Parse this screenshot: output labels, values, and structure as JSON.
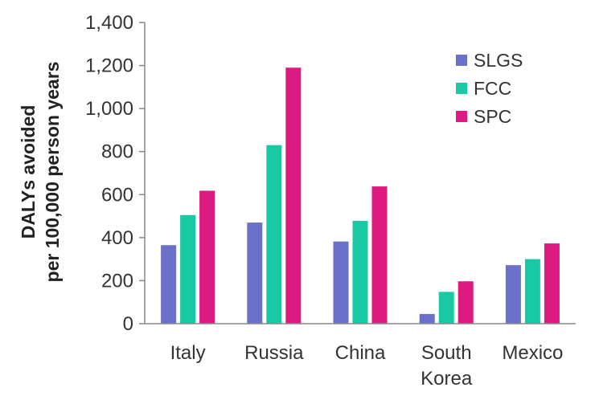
{
  "chart_data": {
    "type": "bar",
    "title": "",
    "xlabel": "",
    "ylabel_lines": [
      "DALYs avoided",
      "per 100,000 person years"
    ],
    "categories": [
      [
        "Italy"
      ],
      [
        "Russia"
      ],
      [
        "China"
      ],
      [
        "South",
        "Korea"
      ],
      [
        "Mexico"
      ]
    ],
    "ylim": [
      0,
      1400
    ],
    "yticks": [
      0,
      200,
      400,
      600,
      800,
      1000,
      1200,
      1400
    ],
    "ytick_labels": [
      "0",
      "200",
      "400",
      "600",
      "800",
      "1,000",
      "1,200",
      "1,400"
    ],
    "grid": false,
    "legend_position": "top-right",
    "series": [
      {
        "name": "SLGS",
        "color": "#6b70c8",
        "values": [
          365,
          470,
          382,
          45,
          272
        ]
      },
      {
        "name": "FCC",
        "color": "#19c9a4",
        "values": [
          505,
          830,
          478,
          148,
          300
        ]
      },
      {
        "name": "SPC",
        "color": "#dd1a80",
        "values": [
          618,
          1190,
          638,
          197,
          373
        ]
      }
    ]
  }
}
